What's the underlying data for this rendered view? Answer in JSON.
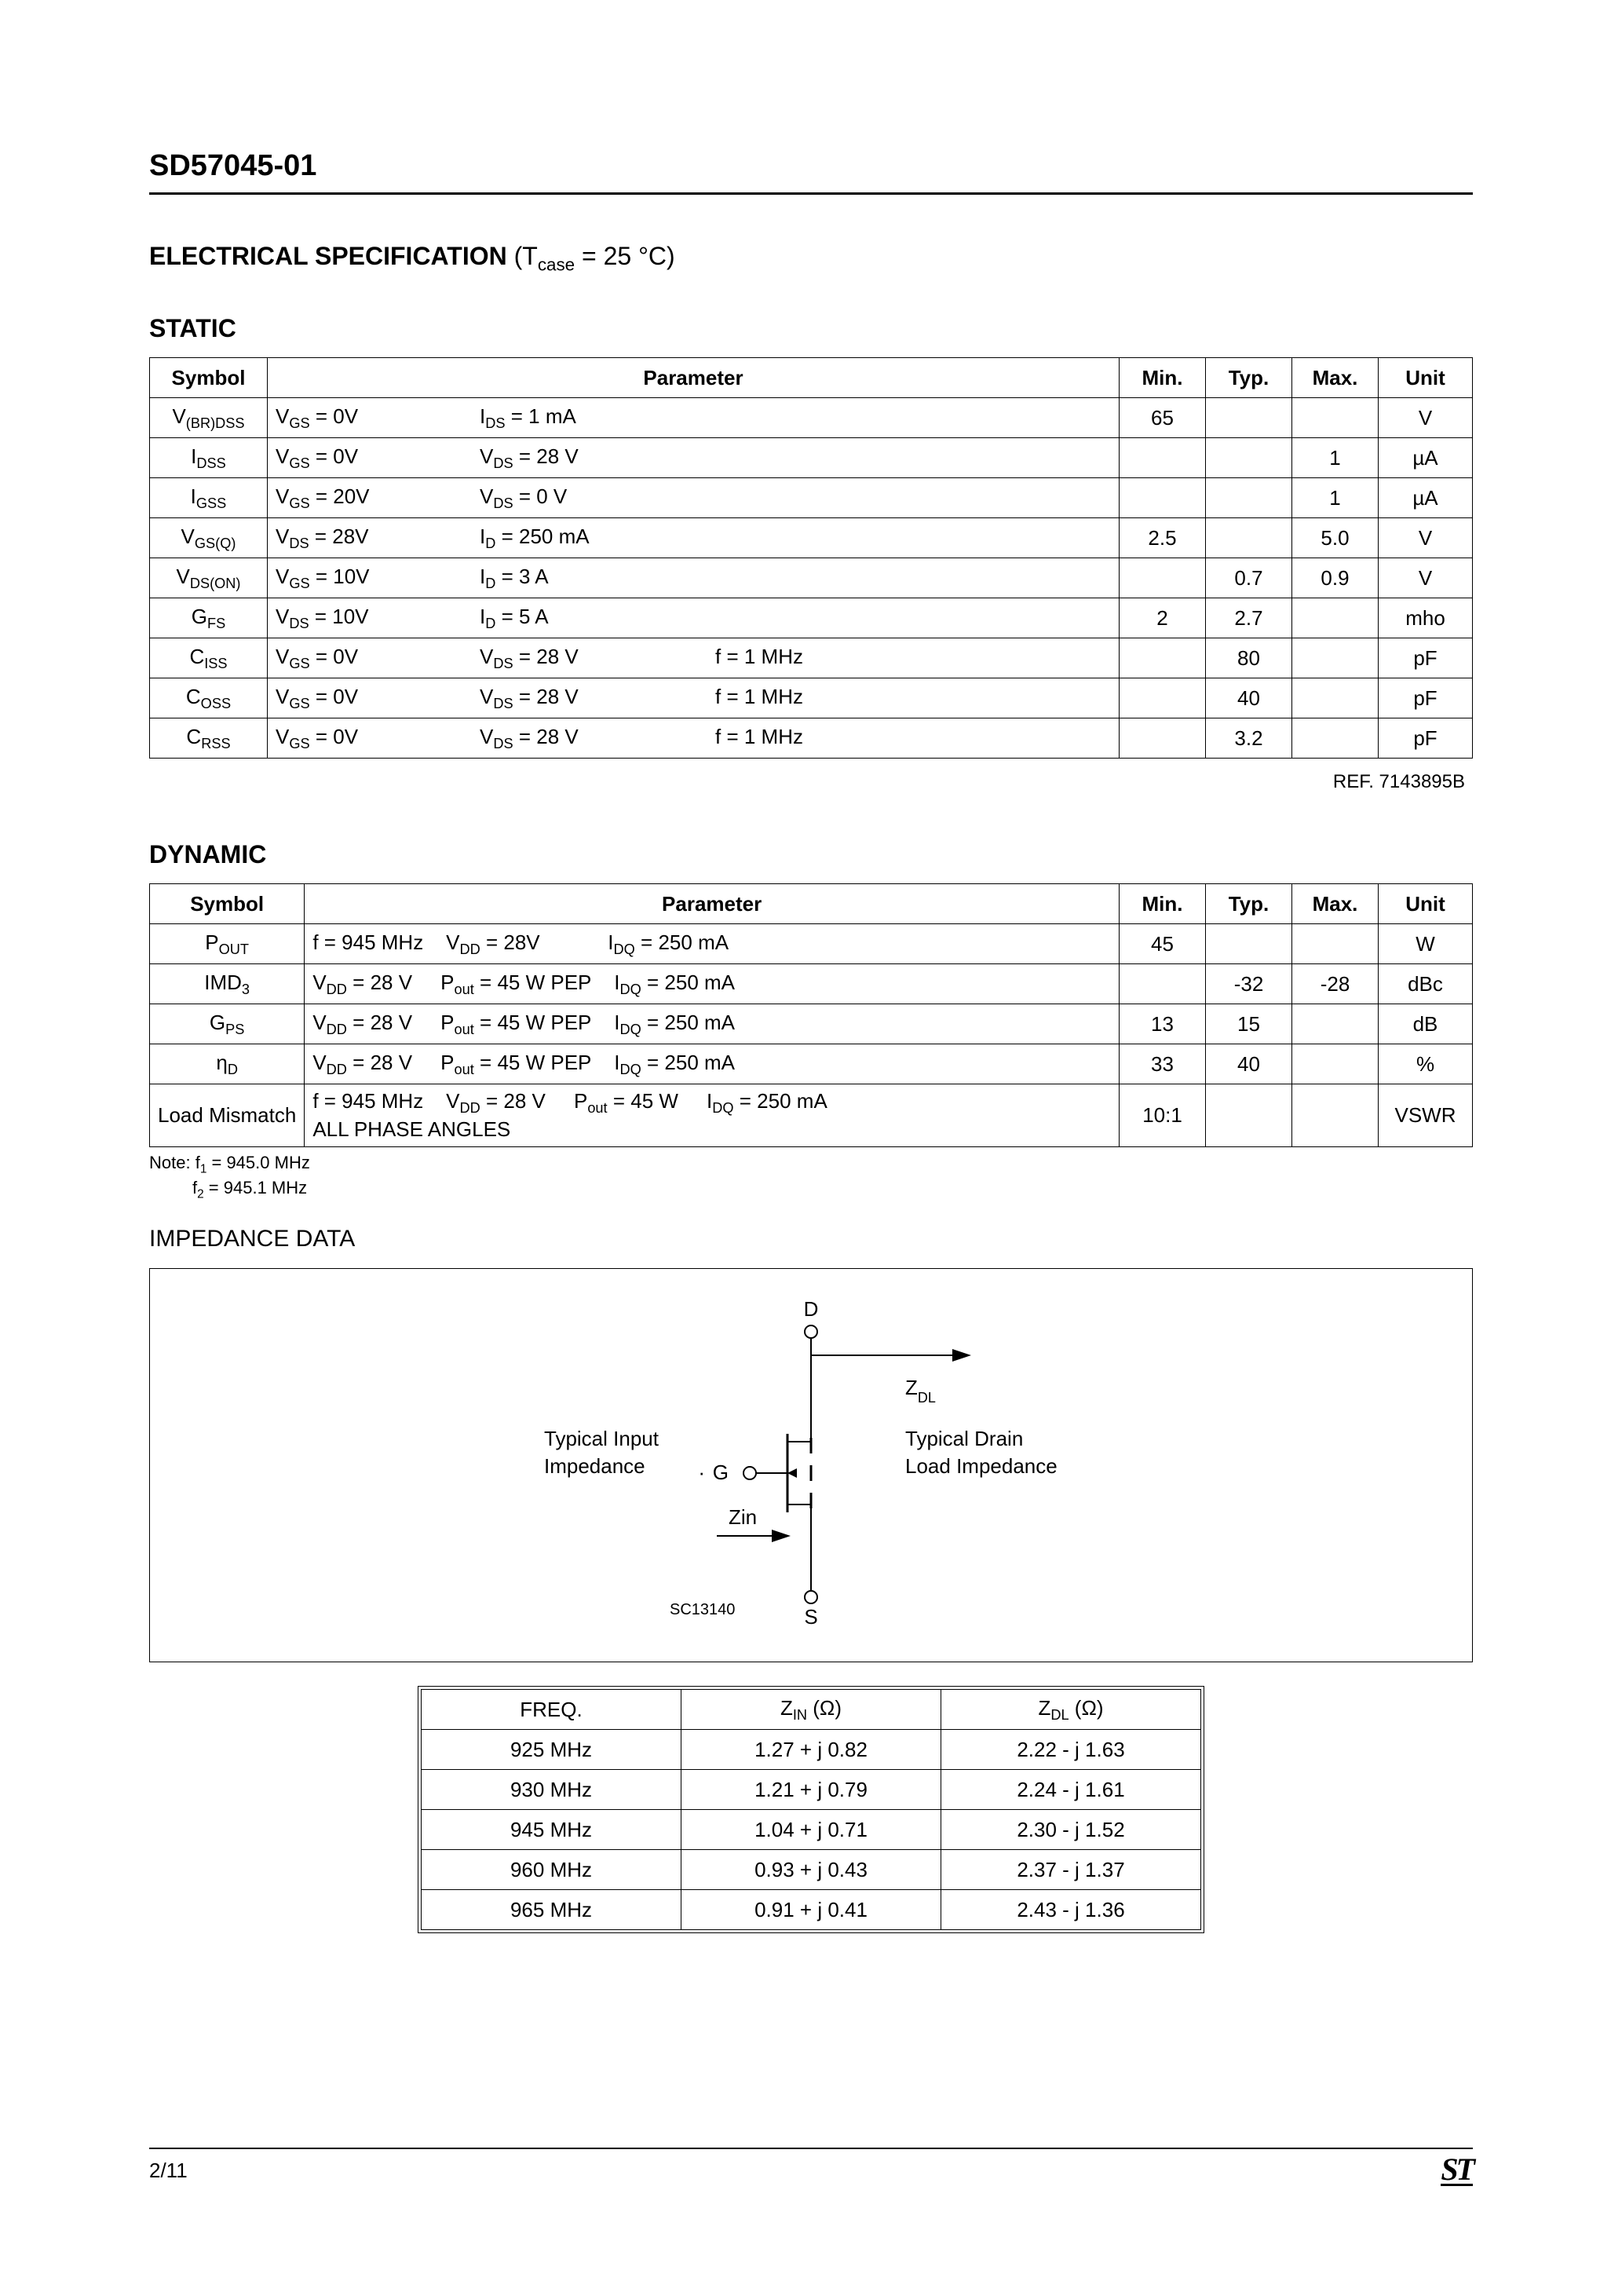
{
  "part_number": "SD57045-01",
  "spec_title_bold": "ELECTRICAL SPECIFICATION",
  "spec_title_cond": "(T<sub>case</sub> = 25 °C)",
  "static_label": "STATIC",
  "dynamic_label": "DYNAMIC",
  "table_headers": {
    "symbol": "Symbol",
    "parameter": "Parameter",
    "min": "Min.",
    "typ": "Typ.",
    "max": "Max.",
    "unit": "Unit"
  },
  "col_widths": {
    "symbol": "150px",
    "min": "110px",
    "typ": "110px",
    "max": "110px",
    "unit": "120px"
  },
  "static_rows": [
    {
      "sym": "V<sub>(BR)DSS</sub>",
      "p1": "V<sub>GS</sub> = 0V",
      "p2": "I<sub>DS</sub> = 1 mA",
      "p3": "",
      "min": "65",
      "typ": "",
      "max": "",
      "unit": "V"
    },
    {
      "sym": "I<sub>DSS</sub>",
      "p1": "V<sub>GS</sub> = 0V",
      "p2": "V<sub>DS</sub> = 28 V",
      "p3": "",
      "min": "",
      "typ": "",
      "max": "1",
      "unit": "µA"
    },
    {
      "sym": "I<sub>GSS</sub>",
      "p1": "V<sub>GS</sub> = 20V",
      "p2": "V<sub>DS</sub> = 0 V",
      "p3": "",
      "min": "",
      "typ": "",
      "max": "1",
      "unit": "µA"
    },
    {
      "sym": "V<sub>GS(Q)</sub>",
      "p1": "V<sub>DS</sub> = 28V",
      "p2": "I<sub>D</sub> = 250 mA",
      "p3": "",
      "min": "2.5",
      "typ": "",
      "max": "5.0",
      "unit": "V"
    },
    {
      "sym": "V<sub>DS(ON)</sub>",
      "p1": "V<sub>GS</sub> = 10V",
      "p2": "I<sub>D</sub> = 3 A",
      "p3": "",
      "min": "",
      "typ": "0.7",
      "max": "0.9",
      "unit": "V"
    },
    {
      "sym": "G<sub>FS</sub>",
      "p1": "V<sub>DS</sub> = 10V",
      "p2": "I<sub>D</sub> = 5 A",
      "p3": "",
      "min": "2",
      "typ": "2.7",
      "max": "",
      "unit": "mho"
    },
    {
      "sym": "C<sub>ISS</sub>",
      "p1": "V<sub>GS</sub> = 0V",
      "p2": "V<sub>DS</sub> = 28 V",
      "p3": "f = 1 MHz",
      "min": "",
      "typ": "80",
      "max": "",
      "unit": "pF"
    },
    {
      "sym": "C<sub>OSS</sub>",
      "p1": "V<sub>GS</sub> = 0V",
      "p2": "V<sub>DS</sub> = 28 V",
      "p3": "f = 1 MHz",
      "min": "",
      "typ": "40",
      "max": "",
      "unit": "pF"
    },
    {
      "sym": "C<sub>RSS</sub>",
      "p1": "V<sub>GS</sub> = 0V",
      "p2": "V<sub>DS</sub> = 28 V",
      "p3": "f = 1 MHz",
      "min": "",
      "typ": "3.2",
      "max": "",
      "unit": "pF"
    }
  ],
  "ref_note": "REF. 7143895B",
  "dynamic_rows": [
    {
      "sym": "P<sub>OUT</sub>",
      "param": "f = 945 MHz&nbsp;&nbsp;&nbsp;&nbsp;V<sub>DD</sub> = 28V&nbsp;&nbsp;&nbsp;&nbsp;&nbsp;&nbsp;&nbsp;&nbsp;&nbsp;&nbsp;&nbsp;&nbsp;I<sub>DQ</sub> = 250 mA",
      "min": "45",
      "typ": "",
      "max": "",
      "unit": "W"
    },
    {
      "sym": "IMD<sub>3</sub>",
      "param": "V<sub>DD</sub> = 28 V&nbsp;&nbsp;&nbsp;&nbsp;&nbsp;P<sub>out</sub> = 45 W PEP&nbsp;&nbsp;&nbsp;&nbsp;I<sub>DQ</sub> = 250 mA",
      "min": "",
      "typ": "-32",
      "max": "-28",
      "unit": "dBc"
    },
    {
      "sym": "G<sub>PS</sub>",
      "param": "V<sub>DD</sub> = 28 V&nbsp;&nbsp;&nbsp;&nbsp;&nbsp;P<sub>out</sub> = 45 W PEP&nbsp;&nbsp;&nbsp;&nbsp;I<sub>DQ</sub> = 250 mA",
      "min": "13",
      "typ": "15",
      "max": "",
      "unit": "dB"
    },
    {
      "sym": "η<sub>D</sub>",
      "param": "V<sub>DD</sub> = 28 V&nbsp;&nbsp;&nbsp;&nbsp;&nbsp;P<sub>out</sub> = 45 W PEP&nbsp;&nbsp;&nbsp;&nbsp;I<sub>DQ</sub> = 250 mA",
      "min": "33",
      "typ": "40",
      "max": "",
      "unit": "%"
    },
    {
      "sym": "Load Mismatch",
      "param": "f = 945 MHz&nbsp;&nbsp;&nbsp;&nbsp;V<sub>DD</sub> = 28 V&nbsp;&nbsp;&nbsp;&nbsp;&nbsp;P<sub>out</sub> = 45 W&nbsp;&nbsp;&nbsp;&nbsp;&nbsp;I<sub>DQ</sub> = 250 mA<br>ALL PHASE ANGLES",
      "min": "10:1",
      "typ": "",
      "max": "",
      "unit": "VSWR"
    }
  ],
  "note_lines": [
    "Note: f<sub>1</sub> = 945.0 MHz",
    "&nbsp;&nbsp;&nbsp;&nbsp;&nbsp;&nbsp;&nbsp;&nbsp;&nbsp;f<sub>2</sub> = 945.1 MHz"
  ],
  "impedance_title": "IMPEDANCE DATA",
  "diagram": {
    "d_label": "D",
    "g_label": "G",
    "s_label": "S",
    "zdl_label": "Z<sub>DL</sub>",
    "zin_label": "Zin",
    "left_line1": "Typical Input",
    "left_line2": "Impedance",
    "right_line1": "Typical Drain",
    "right_line2": "Load Impedance",
    "code": "SC13140"
  },
  "impedance_headers": {
    "freq": "FREQ.",
    "zin": "Z<sub>IN</sub> (Ω)",
    "zdl": "Z<sub>DL</sub> (Ω)"
  },
  "impedance_rows": [
    {
      "freq": "925 MHz",
      "zin": "1.27 + j 0.82",
      "zdl": "2.22 - j 1.63"
    },
    {
      "freq": "930 MHz",
      "zin": "1.21 + j 0.79",
      "zdl": "2.24 - j 1.61"
    },
    {
      "freq": "945 MHz",
      "zin": "1.04 + j 0.71",
      "zdl": "2.30 - j 1.52"
    },
    {
      "freq": "960 MHz",
      "zin": "0.93 + j 0.43",
      "zdl": "2.37 - j 1.37"
    },
    {
      "freq": "965 MHz",
      "zin": "0.91 + j 0.41",
      "zdl": "2.43 - j 1.36"
    }
  ],
  "page_num": "2/11",
  "logo_text": "ST"
}
